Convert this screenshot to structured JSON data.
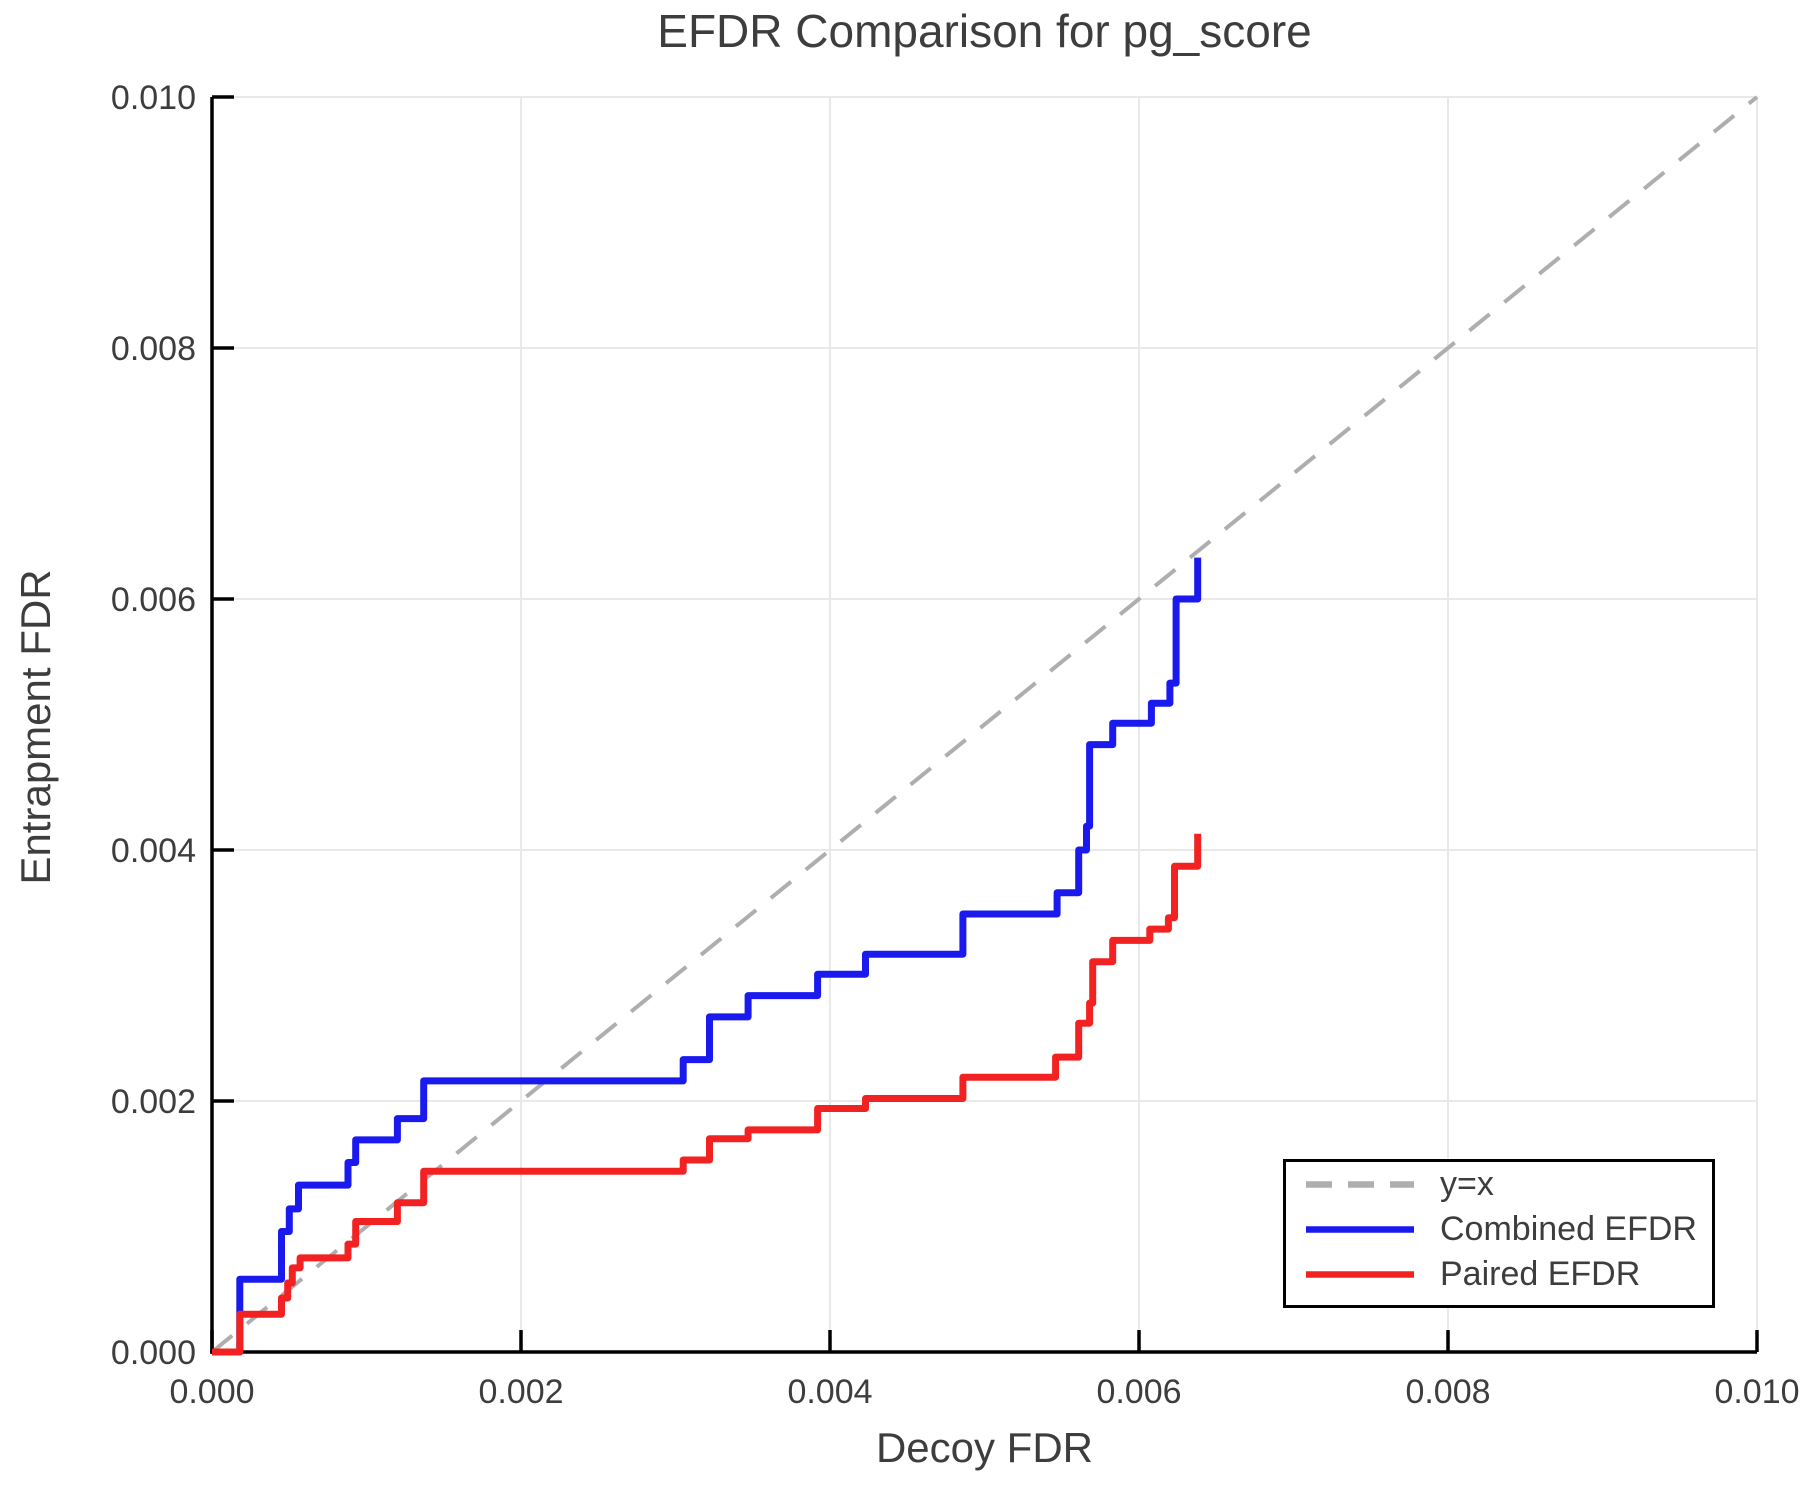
{
  "chart_data": {
    "type": "line",
    "title": "EFDR Comparison for pg_score",
    "xlabel": "Decoy FDR",
    "ylabel": "Entrapment FDR",
    "xlim": [
      0.0,
      0.01
    ],
    "ylim": [
      0.0,
      0.01
    ],
    "grid": true,
    "x_tick_values": [
      0.0,
      0.002,
      0.004,
      0.006,
      0.008,
      0.01
    ],
    "x_tick_labels": [
      "0.000",
      "0.002",
      "0.004",
      "0.006",
      "0.008",
      "0.010"
    ],
    "y_tick_values": [
      0.0,
      0.002,
      0.004,
      0.006,
      0.008,
      0.01
    ],
    "y_tick_labels": [
      "0.000",
      "0.002",
      "0.004",
      "0.006",
      "0.008",
      "0.010"
    ],
    "reference_line": {
      "label": "y=x",
      "style": "dashed",
      "color": "#aeaeae",
      "from": [
        0.0,
        0.0
      ],
      "to": [
        0.01,
        0.01
      ]
    },
    "series": [
      {
        "name": "Combined EFDR",
        "color": "#1a1aee",
        "style": "solid",
        "points": [
          [
            0.0,
            0.0
          ],
          [
            0.00018,
            0.0
          ],
          [
            0.00018,
            0.00058
          ],
          [
            0.00045,
            0.00058
          ],
          [
            0.00045,
            0.00096
          ],
          [
            0.0005,
            0.00096
          ],
          [
            0.0005,
            0.00114
          ],
          [
            0.00056,
            0.00114
          ],
          [
            0.00056,
            0.00133
          ],
          [
            0.00088,
            0.00133
          ],
          [
            0.00088,
            0.00151
          ],
          [
            0.00093,
            0.00151
          ],
          [
            0.00093,
            0.00169
          ],
          [
            0.0012,
            0.00169
          ],
          [
            0.0012,
            0.00186
          ],
          [
            0.00137,
            0.00186
          ],
          [
            0.00137,
            0.00216
          ],
          [
            0.00305,
            0.00216
          ],
          [
            0.00305,
            0.00233
          ],
          [
            0.00322,
            0.00233
          ],
          [
            0.00322,
            0.00267
          ],
          [
            0.00347,
            0.00267
          ],
          [
            0.00347,
            0.00284
          ],
          [
            0.00392,
            0.00284
          ],
          [
            0.00392,
            0.00301
          ],
          [
            0.00423,
            0.00301
          ],
          [
            0.00423,
            0.00317
          ],
          [
            0.00486,
            0.00317
          ],
          [
            0.00486,
            0.00349
          ],
          [
            0.00547,
            0.00349
          ],
          [
            0.00547,
            0.00366
          ],
          [
            0.00561,
            0.00366
          ],
          [
            0.00561,
            0.004
          ],
          [
            0.00566,
            0.004
          ],
          [
            0.00566,
            0.00419
          ],
          [
            0.00568,
            0.00419
          ],
          [
            0.00568,
            0.00484
          ],
          [
            0.00583,
            0.00484
          ],
          [
            0.00583,
            0.00501
          ],
          [
            0.00608,
            0.00501
          ],
          [
            0.00608,
            0.00517
          ],
          [
            0.0062,
            0.00517
          ],
          [
            0.0062,
            0.00533
          ],
          [
            0.00624,
            0.00533
          ],
          [
            0.00624,
            0.006
          ],
          [
            0.00638,
            0.006
          ],
          [
            0.00638,
            0.00633
          ]
        ]
      },
      {
        "name": "Paired EFDR",
        "color": "#f22222",
        "style": "solid",
        "points": [
          [
            0.0,
            0.0
          ],
          [
            0.00018,
            0.0
          ],
          [
            0.00018,
            0.0003
          ],
          [
            0.00045,
            0.0003
          ],
          [
            0.00045,
            0.00043
          ],
          [
            0.00049,
            0.00043
          ],
          [
            0.00049,
            0.00055
          ],
          [
            0.00052,
            0.00055
          ],
          [
            0.00052,
            0.00067
          ],
          [
            0.00057,
            0.00067
          ],
          [
            0.00057,
            0.00075
          ],
          [
            0.00088,
            0.00075
          ],
          [
            0.00088,
            0.00086
          ],
          [
            0.00093,
            0.00086
          ],
          [
            0.00093,
            0.00104
          ],
          [
            0.0012,
            0.00104
          ],
          [
            0.0012,
            0.00119
          ],
          [
            0.00137,
            0.00119
          ],
          [
            0.00137,
            0.00144
          ],
          [
            0.00305,
            0.00144
          ],
          [
            0.00305,
            0.00153
          ],
          [
            0.00322,
            0.00153
          ],
          [
            0.00322,
            0.0017
          ],
          [
            0.00347,
            0.0017
          ],
          [
            0.00347,
            0.00177
          ],
          [
            0.00392,
            0.00177
          ],
          [
            0.00392,
            0.00194
          ],
          [
            0.00423,
            0.00194
          ],
          [
            0.00423,
            0.00202
          ],
          [
            0.00486,
            0.00202
          ],
          [
            0.00486,
            0.00219
          ],
          [
            0.00546,
            0.00219
          ],
          [
            0.00546,
            0.00235
          ],
          [
            0.00561,
            0.00235
          ],
          [
            0.00561,
            0.00262
          ],
          [
            0.00568,
            0.00262
          ],
          [
            0.00568,
            0.00278
          ],
          [
            0.0057,
            0.00278
          ],
          [
            0.0057,
            0.00311
          ],
          [
            0.00583,
            0.00311
          ],
          [
            0.00583,
            0.00328
          ],
          [
            0.00607,
            0.00328
          ],
          [
            0.00607,
            0.00337
          ],
          [
            0.00619,
            0.00337
          ],
          [
            0.00619,
            0.00346
          ],
          [
            0.00623,
            0.00346
          ],
          [
            0.00623,
            0.00387
          ],
          [
            0.00638,
            0.00387
          ],
          [
            0.00638,
            0.00413
          ]
        ]
      }
    ],
    "legend": {
      "position": "bottom-right",
      "items": [
        {
          "label": "y=x",
          "color": "#aeaeae",
          "dash": true
        },
        {
          "label": "Combined EFDR",
          "color": "#1a1aee",
          "dash": false
        },
        {
          "label": "Paired EFDR",
          "color": "#f22222",
          "dash": false
        }
      ]
    },
    "colors": {
      "grid": "#e9e9e9",
      "spine": "#000000",
      "text": "#3d3d3d"
    }
  }
}
